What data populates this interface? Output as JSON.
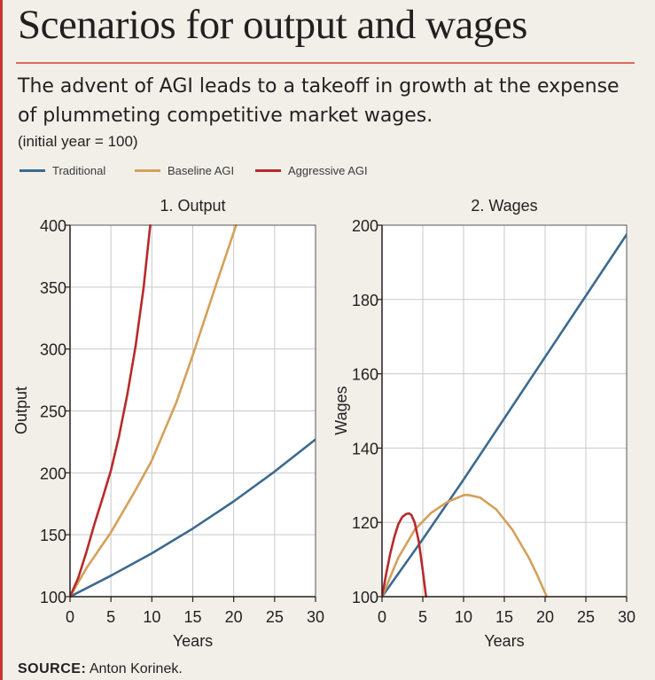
{
  "title": "Scenarios for output and wages",
  "subtitle": "The advent of AGI leads to a takeoff in growth at the expense of plummeting competitive market wages.",
  "note": "(initial year = 100)",
  "legend": [
    {
      "name": "Traditional",
      "color": "#3d6a8f"
    },
    {
      "name": "Baseline AGI",
      "color": "#d4a05a"
    },
    {
      "name": "Aggressive AGI",
      "color": "#b72a2a"
    }
  ],
  "source_label": "SOURCE:",
  "source_text": "Anton Korinek.",
  "chart_data": [
    {
      "type": "line",
      "title": "1. Output",
      "xlabel": "Years",
      "ylabel": "Output",
      "xlim": [
        0,
        30
      ],
      "ylim": [
        100,
        400
      ],
      "xticks": [
        0,
        5,
        10,
        15,
        20,
        25,
        30
      ],
      "yticks": [
        100,
        150,
        200,
        250,
        300,
        350,
        400
      ],
      "grid": true,
      "series": [
        {
          "name": "Traditional",
          "color": "#3d6a8f",
          "x": [
            0,
            5,
            10,
            15,
            20,
            25,
            30
          ],
          "y": [
            100,
            117,
            135,
            155,
            177,
            201,
            227
          ]
        },
        {
          "name": "Baseline AGI",
          "color": "#d4a05a",
          "x": [
            0,
            2,
            5,
            8,
            10,
            13,
            15,
            18,
            20.3
          ],
          "y": [
            100,
            123,
            152,
            186,
            210,
            257,
            295,
            355,
            400
          ]
        },
        {
          "name": "Aggressive AGI",
          "color": "#b72a2a",
          "x": [
            0,
            1,
            2,
            3,
            4,
            5,
            6,
            7,
            8,
            9,
            9.8
          ],
          "y": [
            100,
            115,
            136,
            159,
            180,
            202,
            230,
            263,
            302,
            350,
            400
          ]
        }
      ]
    },
    {
      "type": "line",
      "title": "2. Wages",
      "xlabel": "Years",
      "ylabel": "Wages",
      "xlim": [
        0,
        30
      ],
      "ylim": [
        100,
        200
      ],
      "xticks": [
        0,
        5,
        10,
        15,
        20,
        25,
        30
      ],
      "yticks": [
        100,
        120,
        140,
        160,
        180,
        200
      ],
      "grid": true,
      "series": [
        {
          "name": "Traditional",
          "color": "#3d6a8f",
          "x": [
            0,
            5,
            10,
            15,
            20,
            25,
            30
          ],
          "y": [
            100,
            115.5,
            131.5,
            148,
            164.5,
            181,
            197.5
          ]
        },
        {
          "name": "Baseline AGI",
          "color": "#d4a05a",
          "x": [
            0,
            2,
            4,
            6,
            8,
            10,
            10.5,
            12,
            14,
            16,
            18,
            19,
            20.2
          ],
          "y": [
            100,
            110.5,
            118,
            122.5,
            125.5,
            127.3,
            127.4,
            126.7,
            123.5,
            118,
            110.5,
            106,
            100
          ]
        },
        {
          "name": "Aggressive AGI",
          "color": "#b72a2a",
          "x": [
            0,
            0.5,
            1,
            1.5,
            2,
            2.5,
            3,
            3.3,
            3.6,
            4,
            4.5,
            5,
            5.4
          ],
          "y": [
            100,
            106,
            111.5,
            116,
            119.5,
            121.5,
            122.3,
            122.4,
            122,
            120,
            115,
            107,
            100
          ]
        }
      ]
    }
  ]
}
